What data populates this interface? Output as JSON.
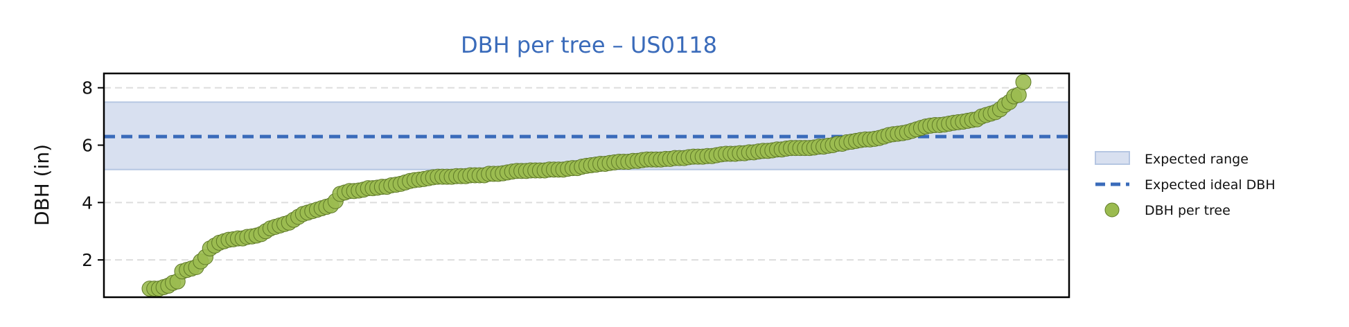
{
  "colors": {
    "title": "#3a6bba",
    "band_fill": "#d8e0f0",
    "band_edge": "#b5c6e2",
    "ideal_line": "#3a6bba",
    "point_fill": "#9bbb50",
    "point_edge": "#5f7a28",
    "grid": "#dddddd"
  },
  "chart_data": {
    "type": "scatter",
    "title": "DBH per tree – US0118",
    "xlabel": "",
    "ylabel": "DBH (in)",
    "x_ticks_shown": false,
    "y_ticks": [
      2,
      4,
      6,
      8
    ],
    "ylim": [
      0.7,
      8.5
    ],
    "grid": "horizontal dashed",
    "legend_placement": "right, outside plot",
    "legend": [
      "Expected range",
      "Expected ideal DBH",
      "DBH per tree"
    ],
    "expected_range": [
      5.15,
      7.5
    ],
    "expected_ideal": 6.3,
    "series": [
      {
        "name": "DBH per tree",
        "values": [
          1.0,
          1.0,
          1.0,
          1.05,
          1.1,
          1.2,
          1.25,
          1.6,
          1.65,
          1.7,
          1.75,
          1.95,
          2.1,
          2.4,
          2.5,
          2.6,
          2.65,
          2.7,
          2.72,
          2.75,
          2.75,
          2.8,
          2.82,
          2.85,
          2.9,
          3.0,
          3.1,
          3.15,
          3.2,
          3.25,
          3.3,
          3.4,
          3.5,
          3.6,
          3.65,
          3.7,
          3.75,
          3.8,
          3.85,
          3.9,
          4.05,
          4.3,
          4.35,
          4.4,
          4.4,
          4.42,
          4.45,
          4.5,
          4.5,
          4.52,
          4.55,
          4.55,
          4.6,
          4.62,
          4.65,
          4.7,
          4.75,
          4.78,
          4.8,
          4.82,
          4.85,
          4.88,
          4.9,
          4.9,
          4.9,
          4.9,
          4.92,
          4.92,
          4.92,
          4.95,
          4.95,
          4.95,
          4.95,
          5.0,
          5.0,
          5.0,
          5.02,
          5.05,
          5.08,
          5.1,
          5.1,
          5.1,
          5.12,
          5.12,
          5.12,
          5.12,
          5.15,
          5.15,
          5.15,
          5.15,
          5.18,
          5.2,
          5.2,
          5.25,
          5.28,
          5.3,
          5.32,
          5.35,
          5.35,
          5.38,
          5.4,
          5.42,
          5.42,
          5.42,
          5.45,
          5.45,
          5.48,
          5.5,
          5.5,
          5.5,
          5.5,
          5.52,
          5.52,
          5.55,
          5.55,
          5.55,
          5.58,
          5.6,
          5.6,
          5.6,
          5.62,
          5.62,
          5.65,
          5.68,
          5.7,
          5.7,
          5.7,
          5.72,
          5.72,
          5.75,
          5.75,
          5.78,
          5.8,
          5.8,
          5.82,
          5.85,
          5.85,
          5.88,
          5.9,
          5.9,
          5.9,
          5.9,
          5.9,
          5.92,
          5.95,
          5.95,
          5.98,
          6.0,
          6.05,
          6.05,
          6.1,
          6.12,
          6.15,
          6.18,
          6.2,
          6.2,
          6.22,
          6.25,
          6.3,
          6.35,
          6.38,
          6.4,
          6.42,
          6.45,
          6.5,
          6.55,
          6.6,
          6.65,
          6.68,
          6.7,
          6.7,
          6.72,
          6.75,
          6.78,
          6.8,
          6.82,
          6.85,
          6.88,
          6.9,
          7.0,
          7.05,
          7.1,
          7.15,
          7.25,
          7.4,
          7.5,
          7.7,
          7.75,
          8.2
        ]
      }
    ]
  }
}
